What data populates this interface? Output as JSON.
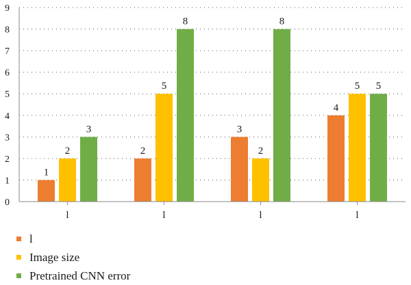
{
  "chart_data": {
    "type": "bar",
    "categories": [
      "l",
      "l",
      "l",
      "l"
    ],
    "series": [
      {
        "name": "l",
        "color": "#ED7D31",
        "values": [
          1,
          2,
          3,
          4
        ]
      },
      {
        "name": "Image size",
        "color": "#FFC000",
        "values": [
          2,
          5,
          2,
          5
        ]
      },
      {
        "name": "Pretrained CNN error",
        "color": "#70AD47",
        "values": [
          3,
          8,
          8,
          5
        ]
      }
    ],
    "ylim": [
      0,
      9
    ],
    "yticks": [
      "0",
      "1",
      "2",
      "3",
      "4",
      "5",
      "6",
      "7",
      "8",
      "9"
    ],
    "grid": "dotted horizontal",
    "legend": "bottom-left",
    "data_labels": true
  }
}
